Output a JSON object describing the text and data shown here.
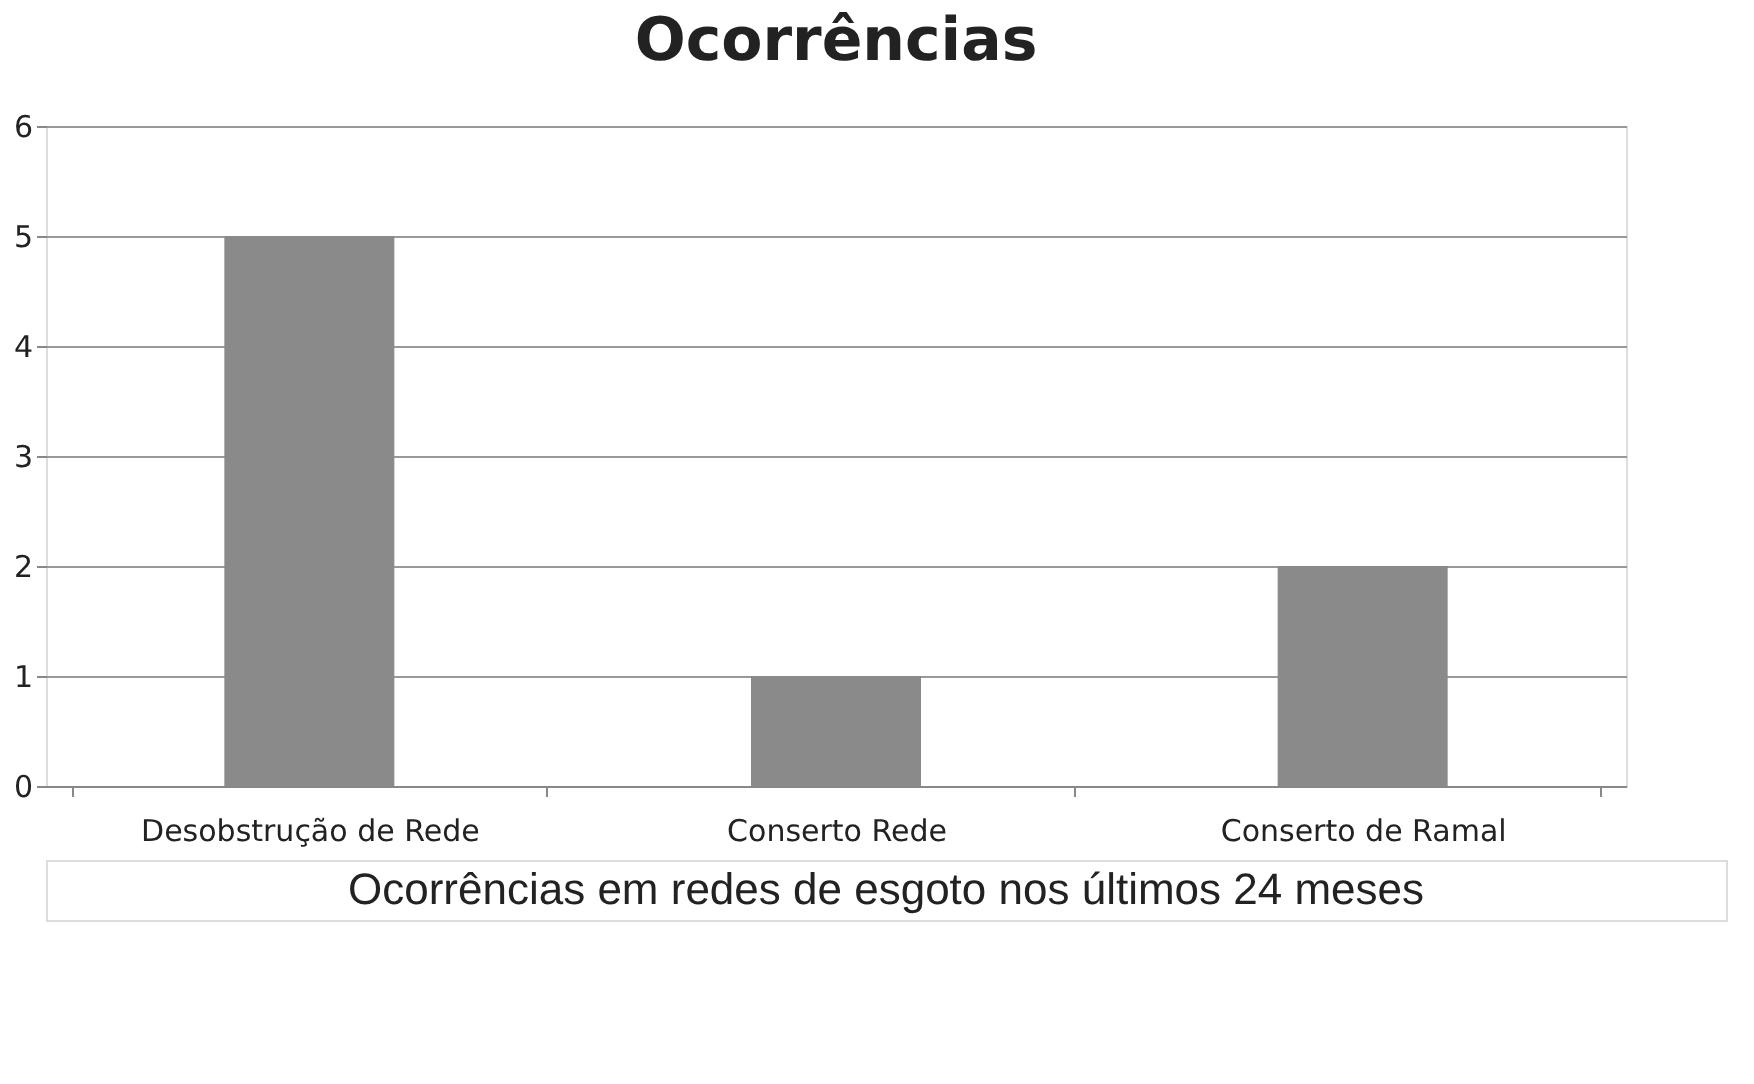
{
  "chart_data": {
    "type": "bar",
    "title": "Ocorrências",
    "categories": [
      "Desobstrução de Rede",
      "Conserto Rede",
      "Conserto de Ramal"
    ],
    "values": [
      5,
      1,
      2
    ],
    "color": "#8a8a8a",
    "ylim": [
      0,
      6
    ],
    "yticks": [
      0,
      1,
      2,
      3,
      4,
      5,
      6
    ],
    "grid": "y",
    "annotations": [
      "Ocorrências em redes de esgoto nos últimos 24 meses"
    ]
  }
}
